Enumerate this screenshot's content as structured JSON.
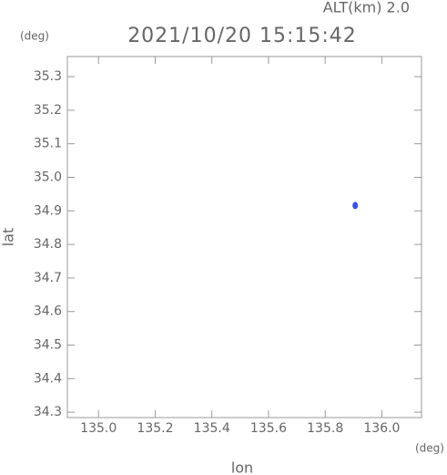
{
  "chart_data": {
    "type": "scatter",
    "title": "2021/10/20 15:15:42",
    "subtitle": "ALT(km) 2.0",
    "x_label": "lon",
    "y_label": "lat",
    "x_unit": "(deg)",
    "y_unit": "(deg)",
    "series": [
      {
        "color": "#3a50e6",
        "x": [
          135.906
        ],
        "values": [
          34.916
        ]
      }
    ],
    "xlim": [
      134.89,
      136.14
    ],
    "ylim": [
      34.284,
      35.36
    ],
    "xticks": [
      {
        "value": 135.0,
        "label": "135.0"
      },
      135.2,
      135.4,
      135.6,
      135.8,
      {
        "value": 136.0,
        "label": "136.0"
      }
    ],
    "yticks": [
      34.3,
      34.4,
      34.5,
      34.6,
      34.7,
      34.8,
      34.9,
      {
        "value": 35.0,
        "label": "35.0"
      },
      35.1,
      35.2,
      35.3
    ],
    "grid": false
  }
}
